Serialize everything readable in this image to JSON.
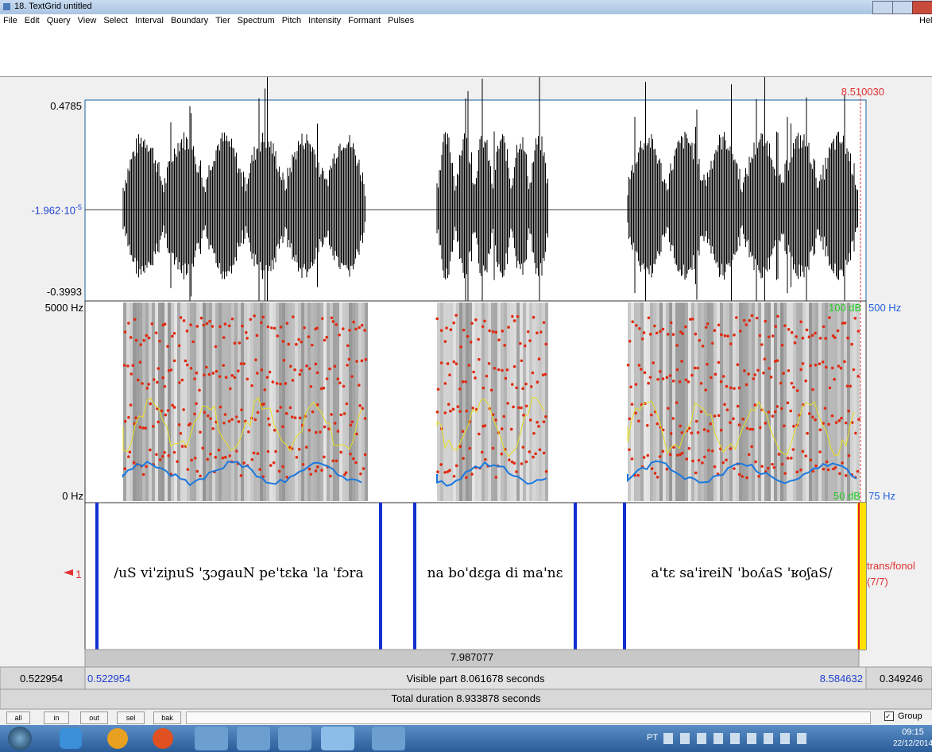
{
  "window": {
    "title": "18. TextGrid untitled",
    "menu": [
      "File",
      "Edit",
      "Query",
      "View",
      "Select",
      "Interval",
      "Boundary",
      "Tier",
      "Spectrum",
      "Pitch",
      "Intensity",
      "Formant",
      "Pulses"
    ],
    "help": "Hel"
  },
  "cursor": {
    "time": "8.510030"
  },
  "waveform": {
    "max": "0.4785",
    "mid_mantissa": "-1.962·10",
    "mid_exponent": "-5",
    "min": "-0.3993"
  },
  "spectrogram": {
    "top": "5000 Hz",
    "bottom": "0 Hz",
    "intensity_top": "100 dB",
    "pitch_top": "500 Hz",
    "intensity_bottom": "50 dB",
    "pitch_bottom": "75 Hz"
  },
  "tier": {
    "number": "1",
    "name": "trans/fonol",
    "count": "(7/7)",
    "intervals": [
      "/uS vi'ziɲuS 'ʒɔgauN pe'tɛka 'la 'fɔra",
      "na bo'dɛga di ma'nɛ",
      "a'tɛ sa'ireiN 'boʎaS 'ʁoʃaS/"
    ]
  },
  "selection": {
    "duration": "7.987077"
  },
  "visible": {
    "left_outside": "0.522954",
    "start": "0.522954",
    "label": "Visible part 8.061678 seconds",
    "end": "8.584632",
    "right_outside": "0.349246"
  },
  "total": {
    "label": "Total duration 8.933878 seconds"
  },
  "buttons": [
    "all",
    "in",
    "out",
    "sel",
    "bak"
  ],
  "group": "Group",
  "taskbar": {
    "language": "PT",
    "time": "09:15",
    "date": "22/12/2014"
  }
}
